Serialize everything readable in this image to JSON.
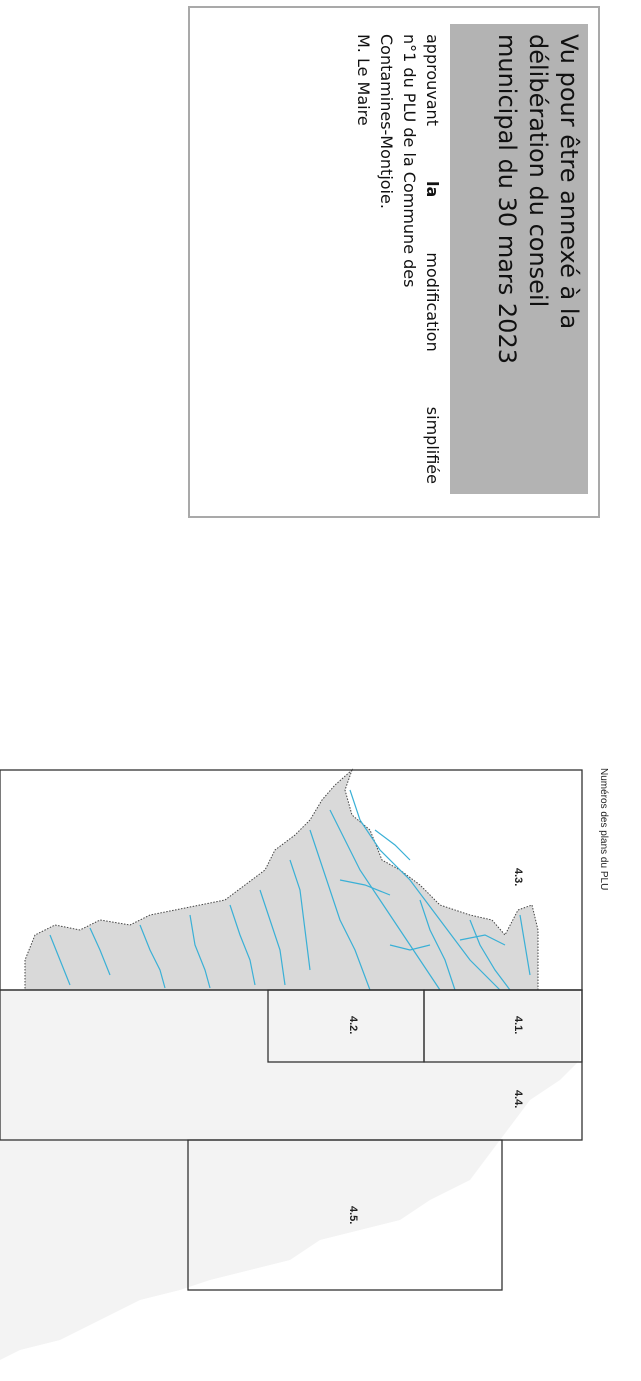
{
  "stamp": {
    "heading_lines": [
      "Vu pour être annexé à la",
      "délibération du conseil",
      "municipal du 30 mars 2023"
    ],
    "body_line1_parts": [
      "approuvant",
      "la",
      "modification",
      "simplifiée"
    ],
    "body_lines": [
      "n°1 du PLU de la Commune des",
      "Contamines-Montjoie.",
      "M. Le Maire"
    ]
  },
  "map": {
    "title": "Numéros des plans du PLU",
    "plans": [
      "4.1.",
      "4.2.",
      "4.3.",
      "4.4.",
      "4.5."
    ]
  },
  "colors": {
    "stamp_header_bg": "#b3b3b3",
    "terrain_fill": "#d9d9d9",
    "river_color": "#3ab0d6"
  }
}
